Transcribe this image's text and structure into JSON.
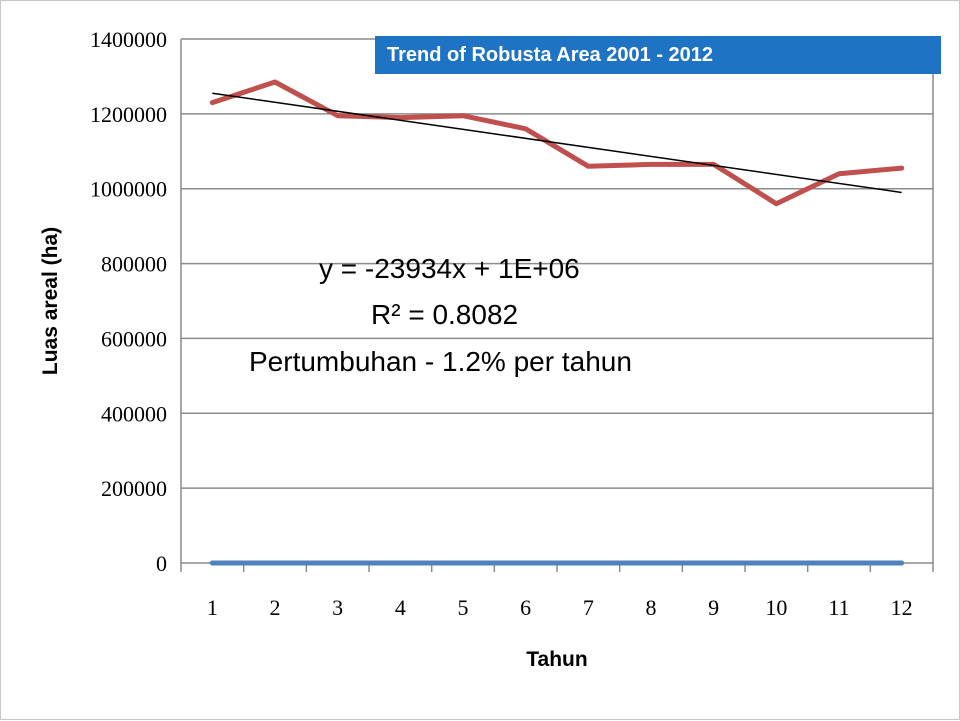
{
  "chart_data": {
    "type": "line",
    "title": "Trend of Robusta Area 2001 - 2012",
    "xlabel": "Tahun",
    "ylabel": "Luas areal (ha)",
    "x": [
      1,
      2,
      3,
      4,
      5,
      6,
      7,
      8,
      9,
      10,
      11,
      12
    ],
    "ylim": [
      0,
      1400000
    ],
    "yticks": [
      0,
      200000,
      400000,
      600000,
      800000,
      1000000,
      1200000,
      1400000
    ],
    "grid": true,
    "legend": "none",
    "series": [
      {
        "values": [
          1230000,
          1285000,
          1195000,
          1190000,
          1195000,
          1160000,
          1060000,
          1065000,
          1065000,
          960000,
          1040000,
          1055000
        ],
        "color": "#c0504d"
      },
      {
        "values": [
          0,
          0,
          0,
          0,
          0,
          0,
          0,
          0,
          0,
          0,
          0,
          0
        ],
        "color": "#4f81bd"
      }
    ],
    "trendline": {
      "start": [
        1,
        1255000
      ],
      "end": [
        12,
        990000
      ],
      "color": "#000000"
    },
    "annotations": [
      "y = -23934x + 1E+06",
      "R² = 0.8082",
      "Pertumbuhan - 1.2% per tahun"
    ]
  }
}
